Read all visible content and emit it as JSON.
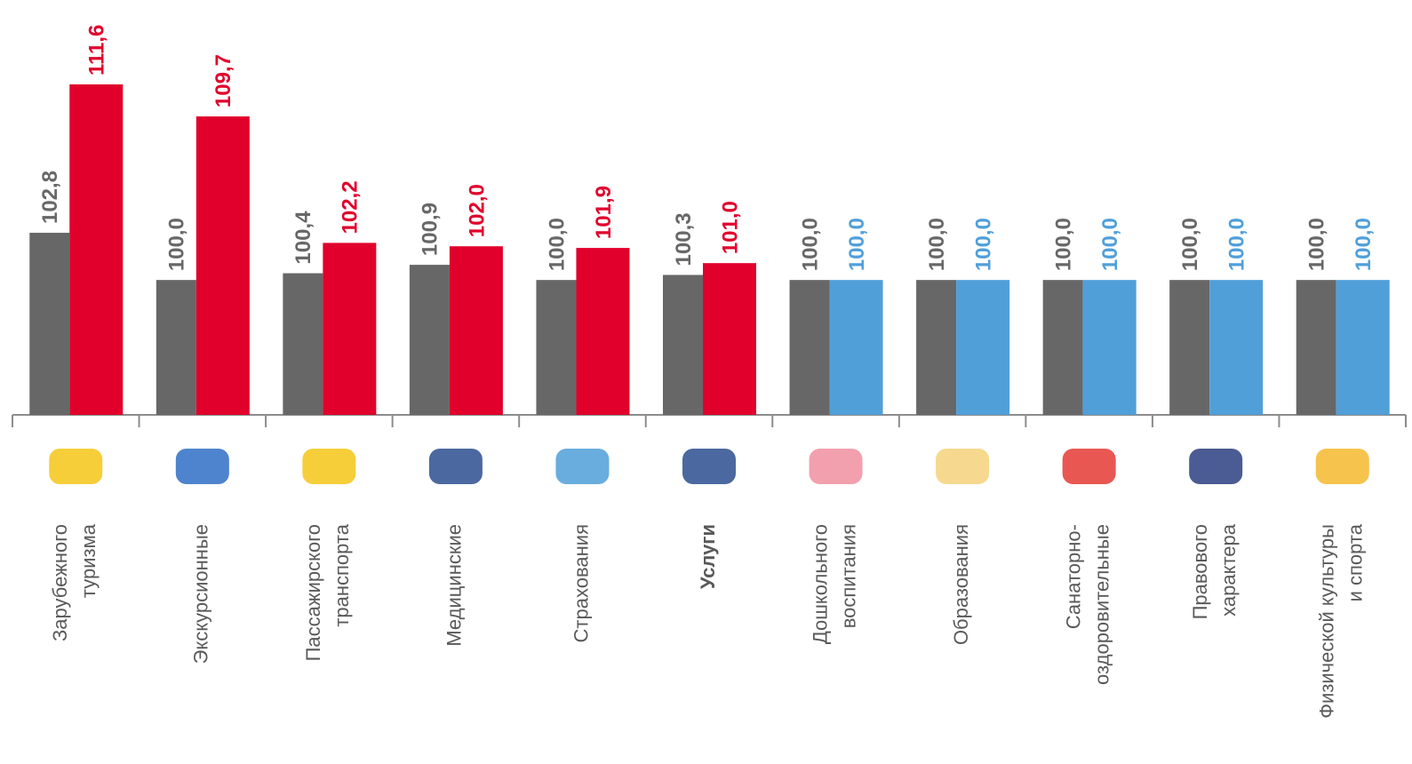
{
  "chart_data": {
    "type": "bar",
    "categories": [
      [
        "Зарубежного",
        "туризма"
      ],
      [
        "Экскурсионные"
      ],
      [
        "Пассажирского",
        "транспорта"
      ],
      [
        "Медицинские"
      ],
      [
        "Страхования"
      ],
      [
        "Услуги"
      ],
      [
        "Дошкольного",
        "воспитания"
      ],
      [
        "Образования"
      ],
      [
        "Санаторно-",
        "оздоровительные"
      ],
      [
        "Правового",
        "характера"
      ],
      [
        "Физической культуры",
        "и спорта"
      ]
    ],
    "series": [
      {
        "color": "#676767",
        "values": [
          102.8,
          100.0,
          100.4,
          100.9,
          100.0,
          100.3,
          100.0,
          100.0,
          100.0,
          100.0,
          100.0
        ],
        "value_labels": [
          "102,8",
          "100,0",
          "100,4",
          "100,9",
          "100,0",
          "100,3",
          "100,0",
          "100,0",
          "100,0",
          "100,0",
          "100,0"
        ]
      },
      {
        "colors": [
          "#e1002b",
          "#e1002b",
          "#e1002b",
          "#e1002b",
          "#e1002b",
          "#e1002b",
          "#509fd9",
          "#509fd9",
          "#509fd9",
          "#509fd9",
          "#509fd9"
        ],
        "values": [
          111.6,
          109.7,
          102.2,
          102.0,
          101.9,
          101.0,
          100.0,
          100.0,
          100.0,
          100.0,
          100.0
        ],
        "value_labels": [
          "111,6",
          "109,7",
          "102,2",
          "102,0",
          "101,9",
          "101,0",
          "100,0",
          "100,0",
          "100,0",
          "100,0",
          "100,0"
        ]
      }
    ],
    "ylim": [
      92,
      116.5
    ]
  }
}
